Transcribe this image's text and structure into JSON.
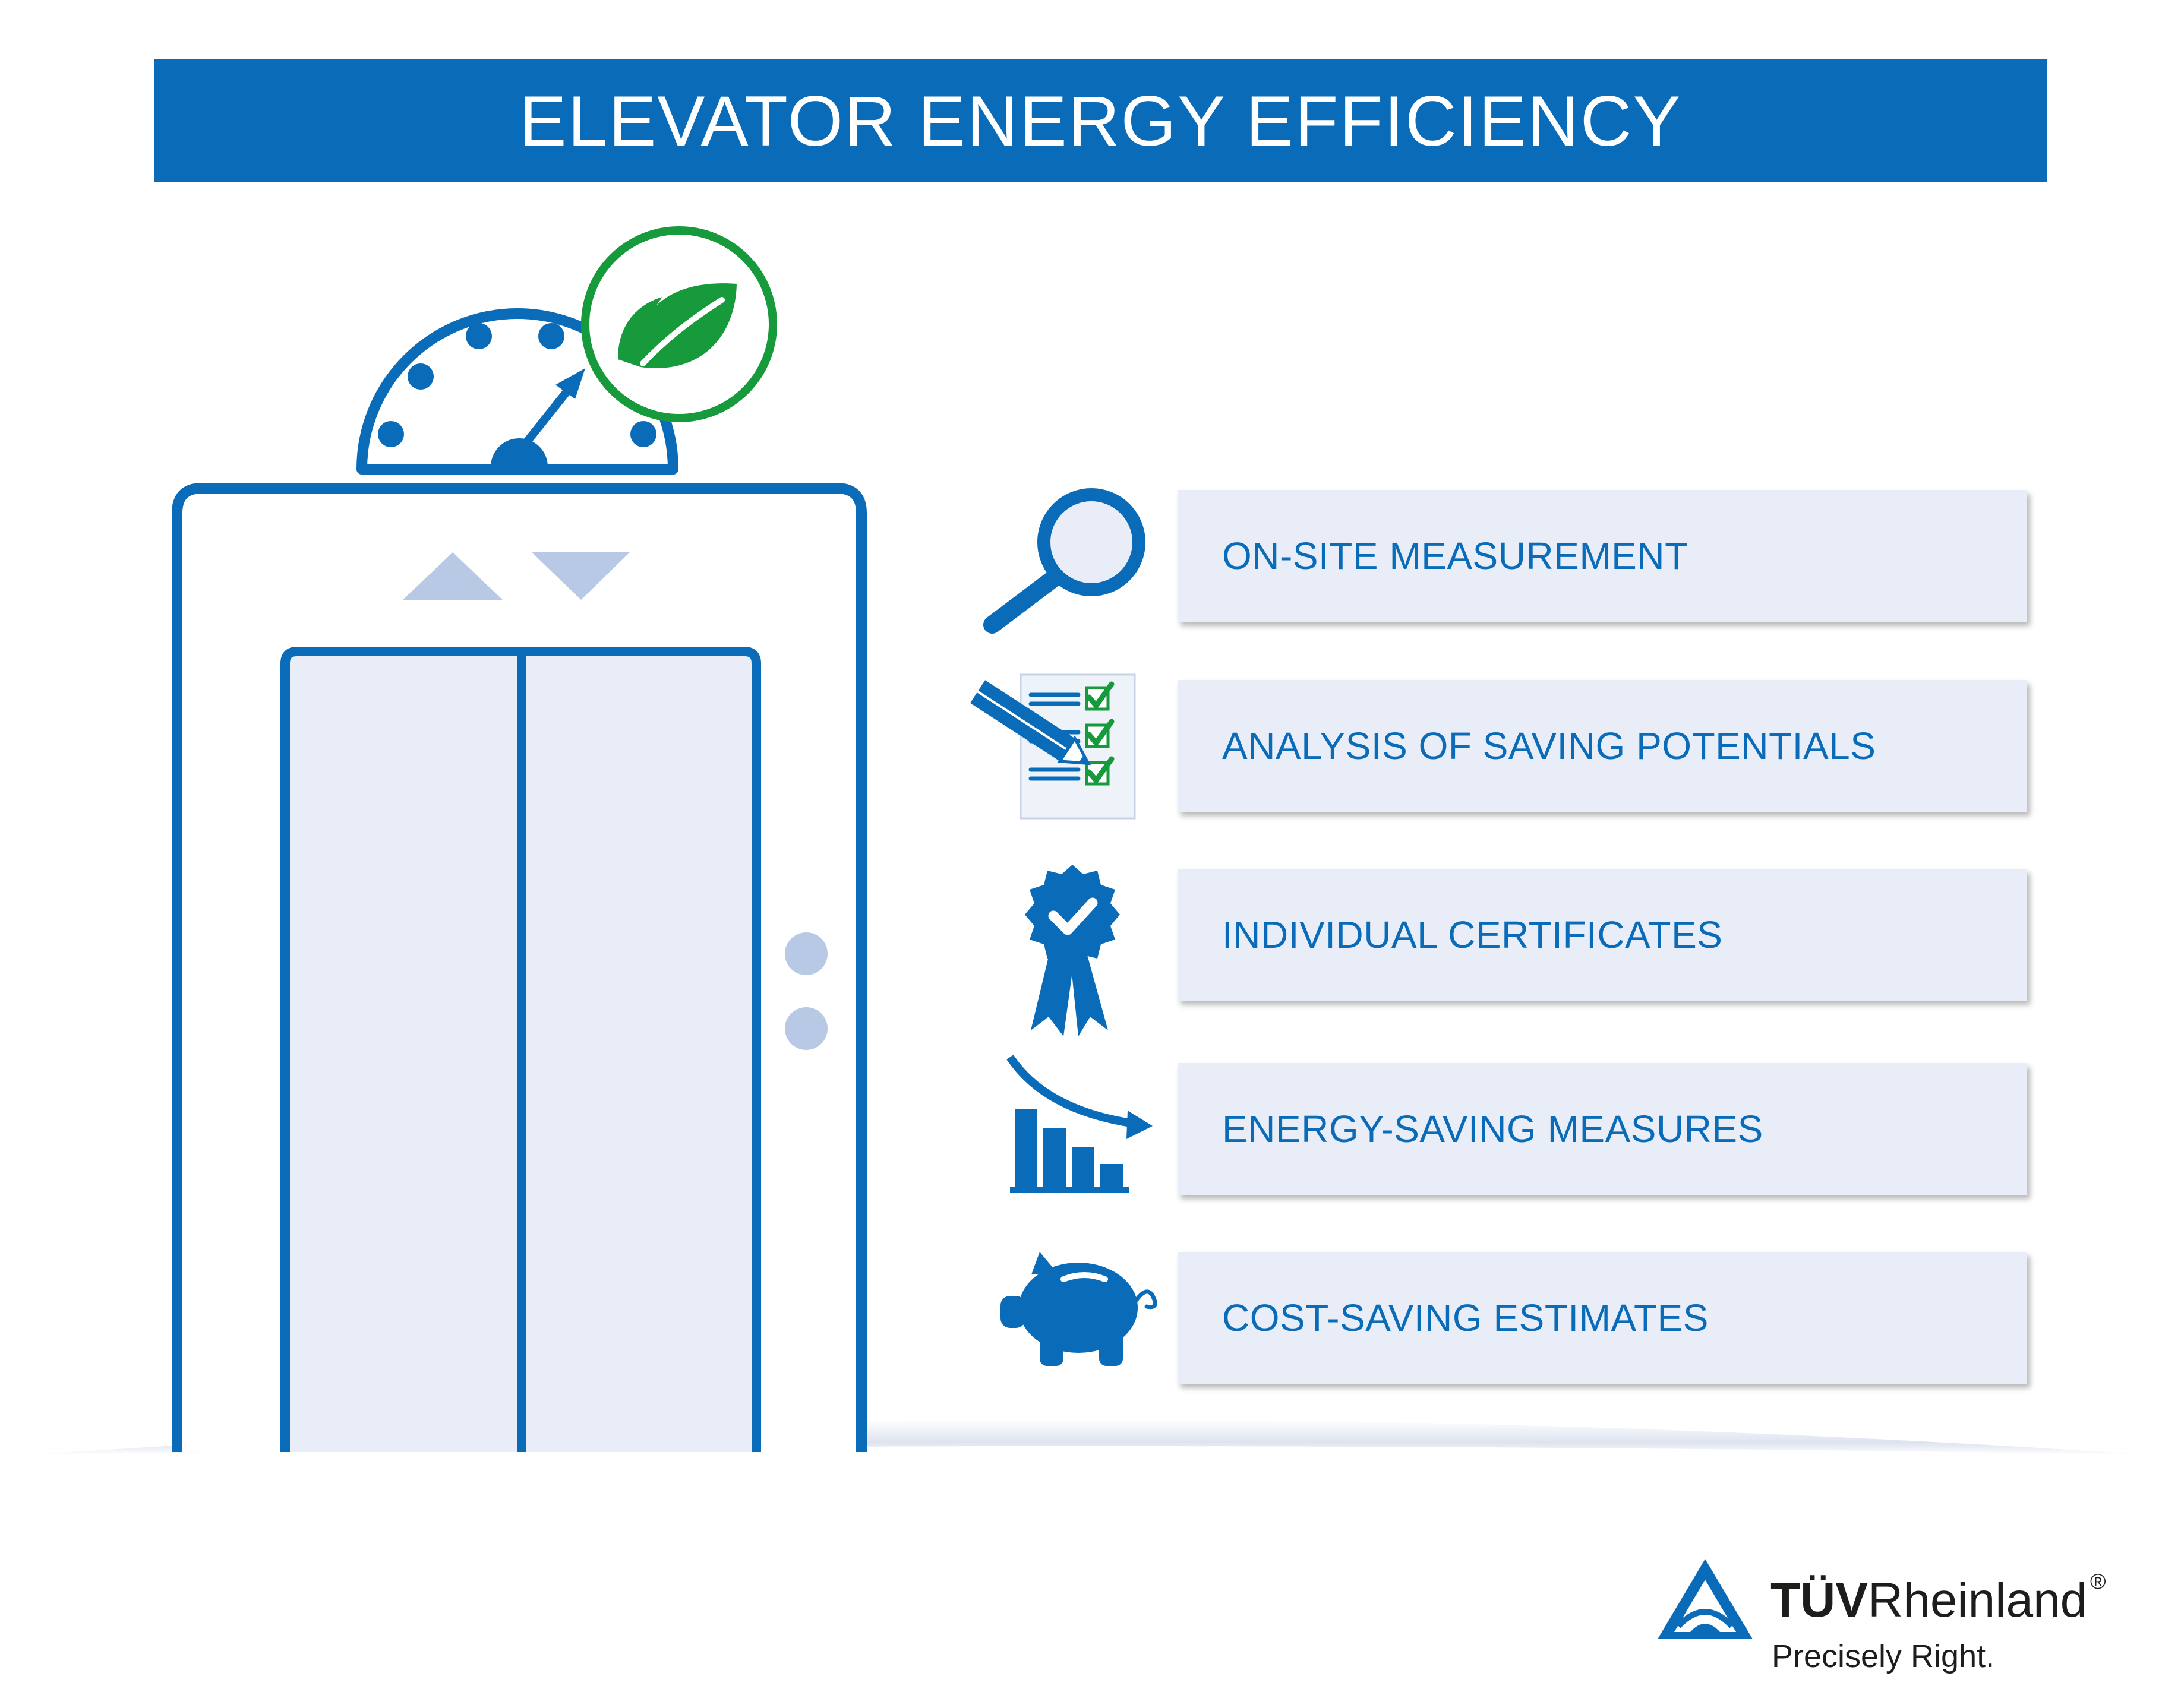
{
  "header": {
    "title": "ELEVATOR ENERGY EFFICIENCY"
  },
  "colors": {
    "brand_blue": "#0a6cb9",
    "card_fill": "#e8edf7",
    "accent_green": "#169a3c",
    "light_blue": "#b8c9e6"
  },
  "items": [
    {
      "label": "ON-SITE MEASUREMENT",
      "icon": "magnifier-icon"
    },
    {
      "label": "ANALYSIS OF SAVING POTENTIALS",
      "icon": "checklist-icon"
    },
    {
      "label": "INDIVIDUAL CERTIFICATES",
      "icon": "award-badge-icon"
    },
    {
      "label": "ENERGY-SAVING MEASURES",
      "icon": "declining-bars-icon"
    },
    {
      "label": "COST-SAVING ESTIMATES",
      "icon": "piggy-bank-icon"
    }
  ],
  "logo": {
    "brand_bold": "TÜV",
    "brand_regular": "Rheinland",
    "registered": "®",
    "tagline": "Precisely Right."
  }
}
